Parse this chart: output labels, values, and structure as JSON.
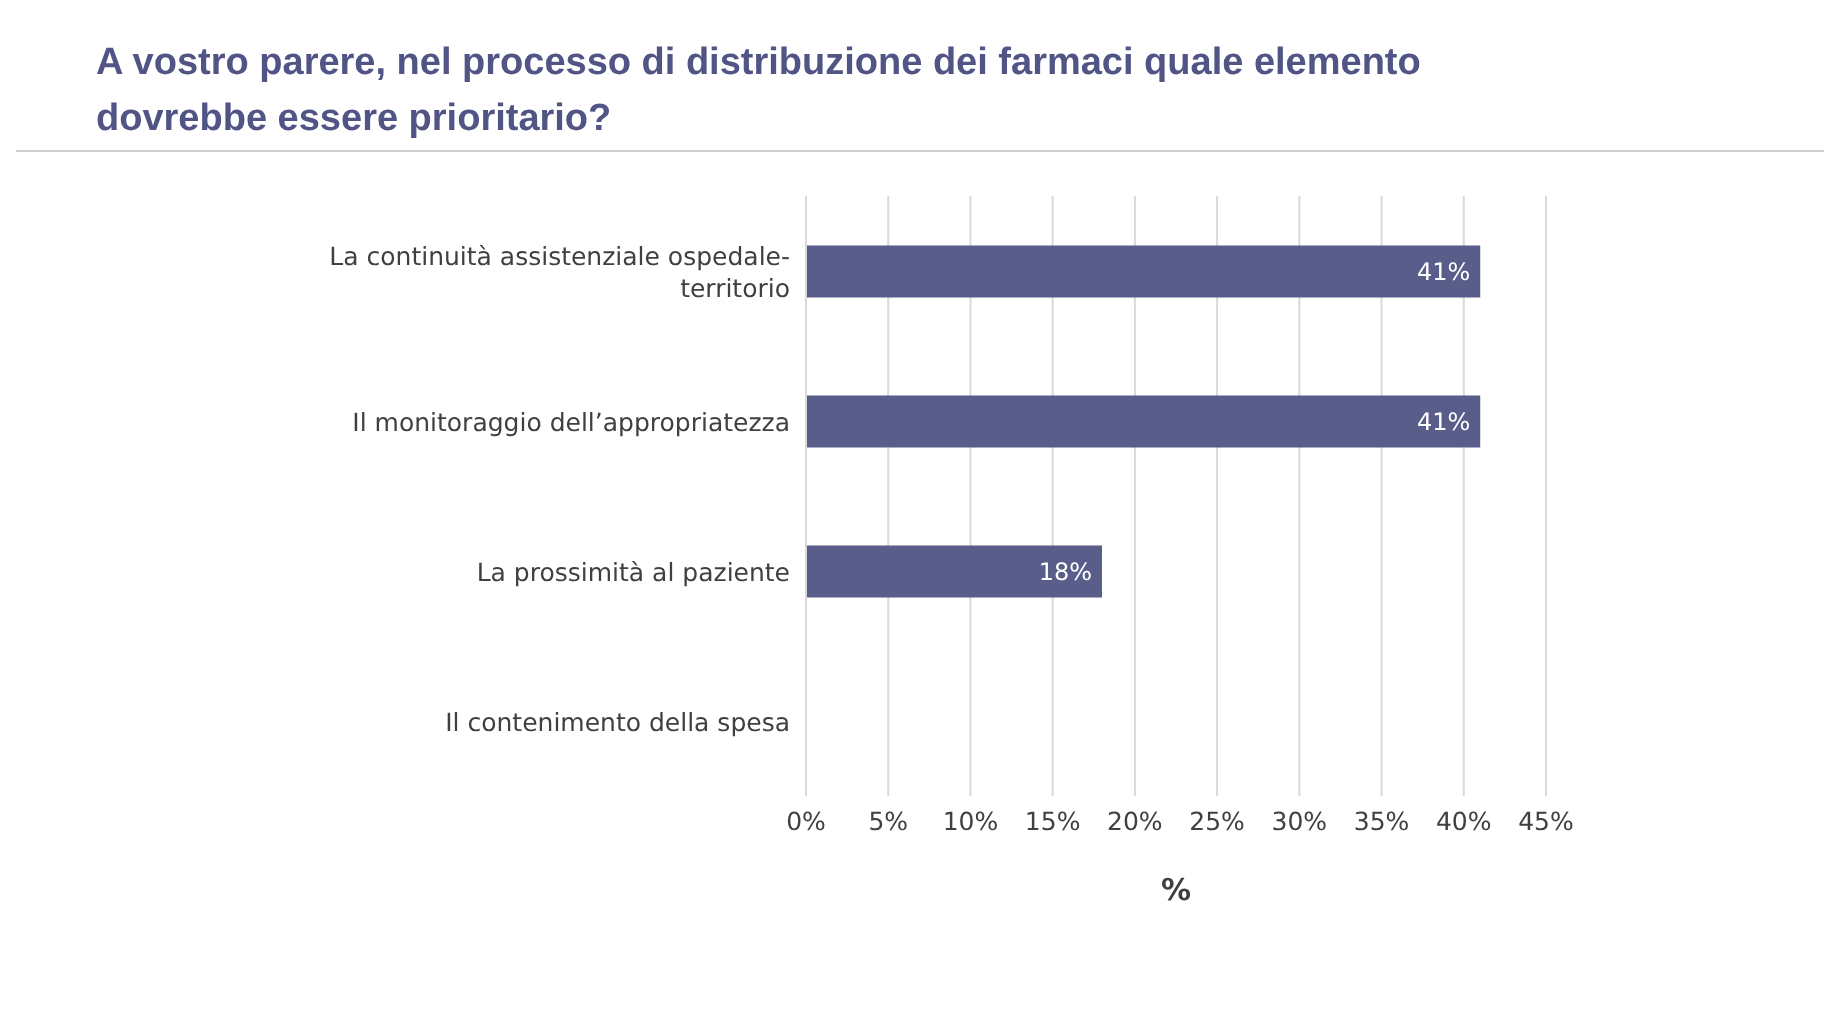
{
  "chart_data": {
    "type": "bar",
    "orientation": "horizontal",
    "title": "A vostro parere, nel processo di distribuzione dei farmaci quale elemento dovrebbe essere prioritario?",
    "xlabel": "%",
    "categories": [
      "La continuità assistenziale ospedale-territorio",
      "Il monitoraggio dell’appropriatezza",
      "La prossimità al paziente",
      "Il contenimento della spesa"
    ],
    "values": [
      41,
      41,
      18,
      0
    ],
    "value_labels": [
      "41%",
      "41%",
      "18%",
      null
    ],
    "color": "#585d8a",
    "xlim": [
      0,
      45
    ],
    "xticks": [
      {
        "value": 0,
        "label": "0%"
      },
      {
        "value": 5,
        "label": "5%"
      },
      {
        "value": 10,
        "label": "10%"
      },
      {
        "value": 15,
        "label": "15%"
      },
      {
        "value": 20,
        "label": "20%"
      },
      {
        "value": 25,
        "label": "25%"
      },
      {
        "value": 30,
        "label": "30%"
      },
      {
        "value": 35,
        "label": "35%"
      },
      {
        "value": 40,
        "label": "40%"
      },
      {
        "value": 45,
        "label": "45%"
      }
    ],
    "grid": "x"
  }
}
